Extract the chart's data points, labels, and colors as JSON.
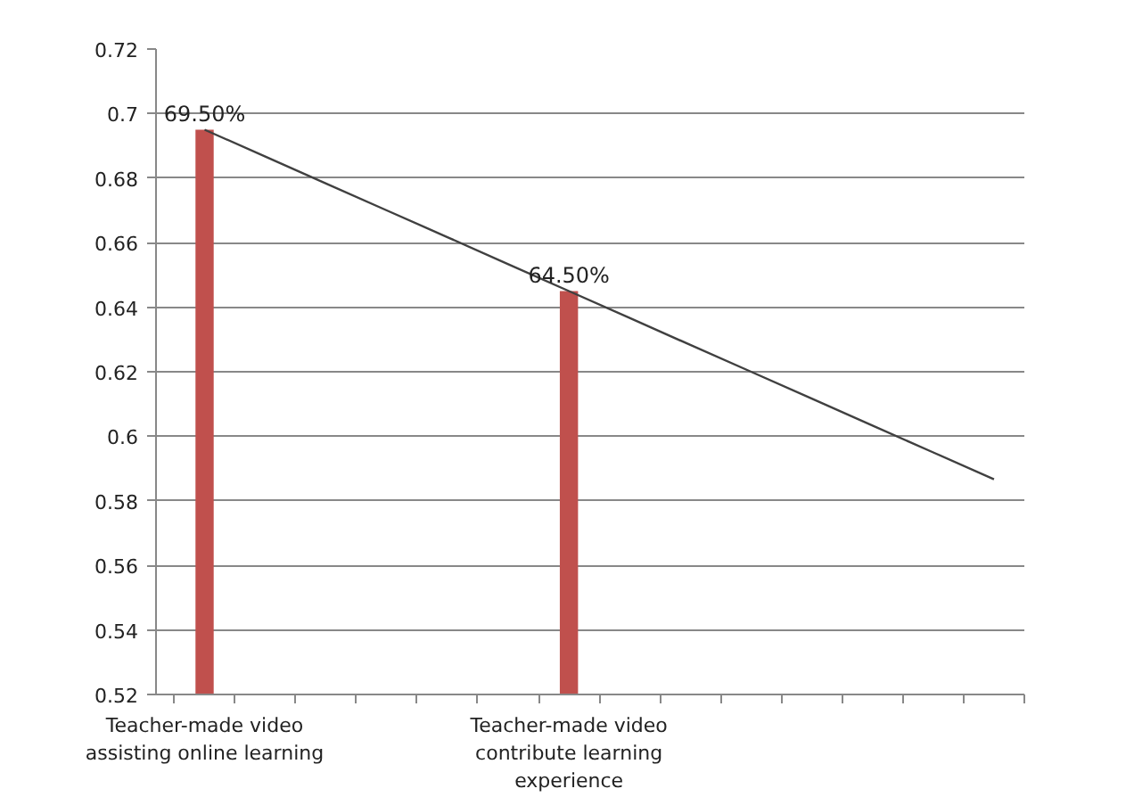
{
  "chart_data": {
    "type": "bar",
    "categories": [
      "Teacher-made video assisting online learning",
      null,
      null,
      null,
      null,
      null,
      "Teacher-made video contribute learning experience",
      null,
      null,
      null,
      null,
      null,
      null,
      null
    ],
    "series": [
      {
        "color": "#c0504d",
        "values": [
          0.695,
          null,
          null,
          null,
          null,
          null,
          0.645,
          null,
          null,
          null,
          null,
          null,
          null,
          null
        ],
        "value_labels": [
          "69.50%",
          null,
          null,
          null,
          null,
          null,
          "64.50%",
          null,
          null,
          null,
          null,
          null,
          null,
          null
        ]
      },
      {
        "type": "line",
        "color": "#404040",
        "values": [
          0.695,
          0.6867,
          0.6783,
          0.67,
          0.6617,
          0.6533,
          0.645,
          0.6367,
          0.6283,
          0.62,
          0.6117,
          0.6033,
          0.595,
          0.5867
        ]
      }
    ],
    "ylim": [
      0.52,
      0.72
    ],
    "yticks": [
      0.52,
      0.54,
      0.56,
      0.58,
      0.6,
      0.62,
      0.64,
      0.66,
      0.68,
      0.7,
      0.72
    ],
    "grid": "y",
    "marker": "none",
    "line_style": "solid"
  }
}
